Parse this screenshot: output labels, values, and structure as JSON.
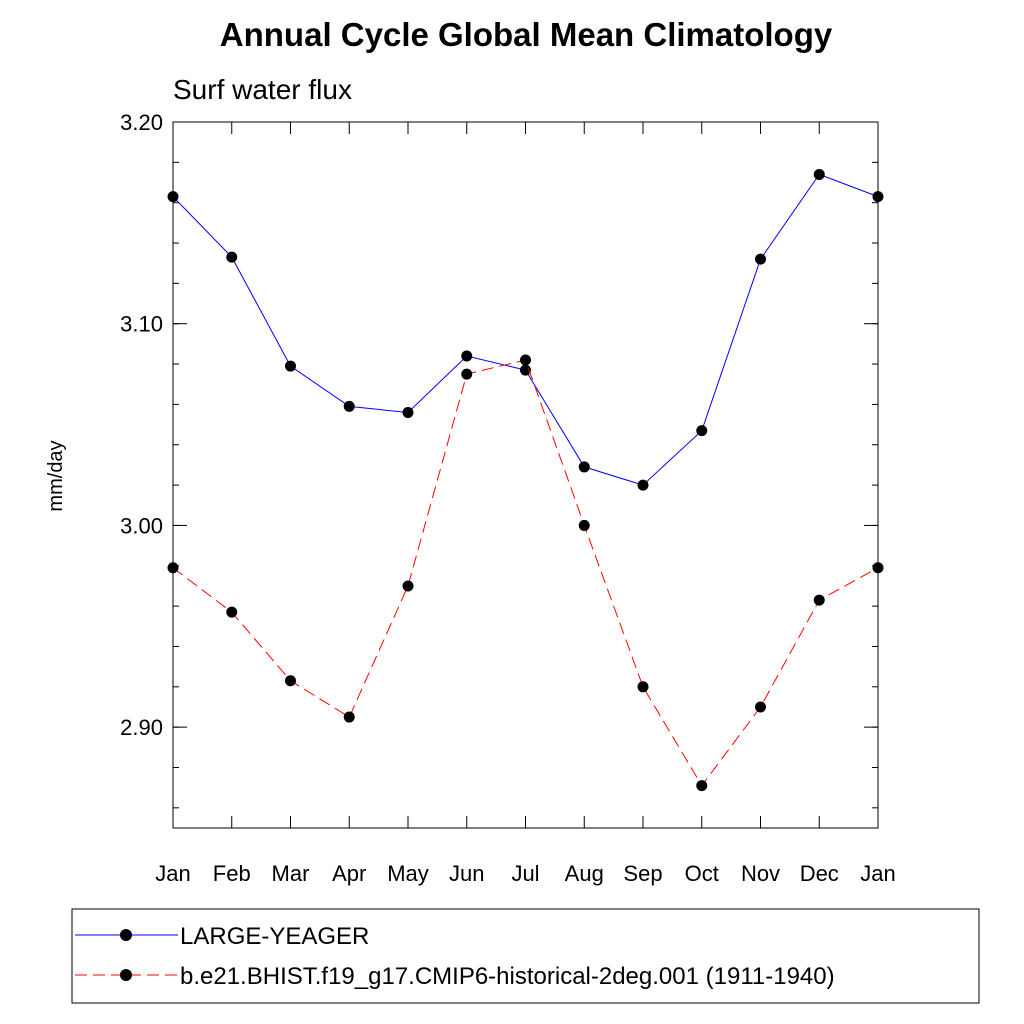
{
  "chart_data": {
    "type": "line",
    "title": "Annual Cycle Global Mean Climatology",
    "subtitle": "Surf water flux",
    "ylabel": "mm/day",
    "xlabel": "",
    "categories": [
      "Jan",
      "Feb",
      "Mar",
      "Apr",
      "May",
      "Jun",
      "Jul",
      "Aug",
      "Sep",
      "Oct",
      "Nov",
      "Dec",
      "Jan"
    ],
    "ylim": [
      2.85,
      3.2
    ],
    "yticks": [
      {
        "value": 2.9,
        "label": "2.90"
      },
      {
        "value": 3.0,
        "label": "3.00"
      },
      {
        "value": 3.1,
        "label": "3.10"
      },
      {
        "value": 3.2,
        "label": "3.20"
      }
    ],
    "yminor_step": 0.02,
    "grid": false,
    "legend_position": "bottom",
    "series": [
      {
        "name": "LARGE-YEAGER",
        "color": "#0000ff",
        "dash": "solid",
        "marker": "filled-circle",
        "values": [
          3.163,
          3.133,
          3.079,
          3.059,
          3.056,
          3.084,
          3.077,
          3.029,
          3.02,
          3.047,
          3.132,
          3.174,
          3.163
        ]
      },
      {
        "name": "b.e21.BHIST.f19_g17.CMIP6-historical-2deg.001 (1911-1940)",
        "color": "#ff0000",
        "dash": "dashed",
        "marker": "filled-circle",
        "values": [
          2.979,
          2.957,
          2.923,
          2.905,
          2.97,
          3.075,
          3.082,
          3.0,
          2.92,
          2.871,
          2.91,
          2.963,
          2.979
        ]
      }
    ]
  }
}
